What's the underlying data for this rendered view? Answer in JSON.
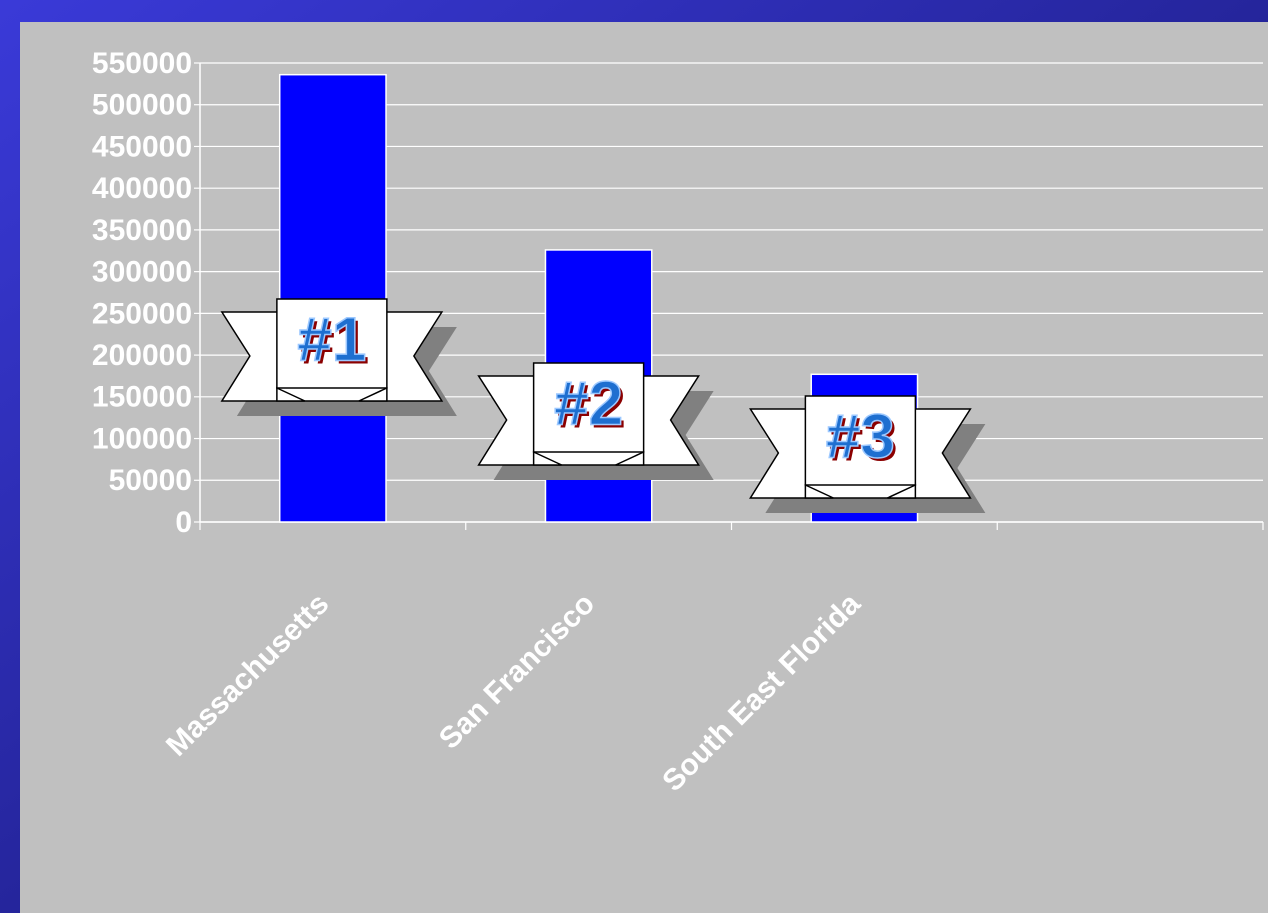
{
  "chart_data": {
    "type": "bar",
    "categories": [
      "Massachusetts",
      "San Francisco",
      "South East Florida",
      null
    ],
    "values": [
      536000,
      326000,
      177000,
      null
    ],
    "color": "#0000ff",
    "ylim": [
      0,
      550000
    ],
    "yticks": [
      0,
      50000,
      100000,
      150000,
      200000,
      250000,
      300000,
      350000,
      400000,
      450000,
      500000,
      550000
    ],
    "grid": true,
    "annotations": [
      "#1",
      "#2",
      "#3"
    ]
  }
}
